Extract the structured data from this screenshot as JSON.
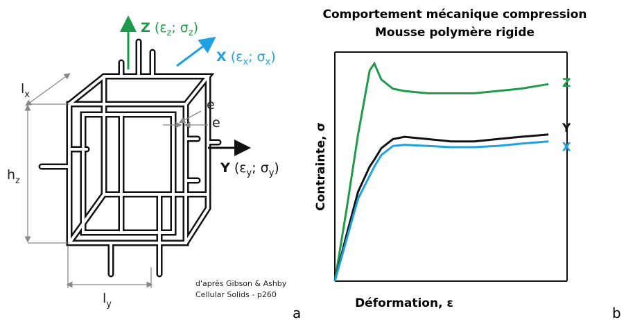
{
  "diagram": {
    "axes": [
      {
        "name": "Z",
        "parts": [
          "(ε",
          "z",
          "; σ",
          "z",
          ")"
        ],
        "color": "#1f9a4a"
      },
      {
        "name": "X",
        "parts": [
          "(ε",
          "x",
          "; σ",
          "x",
          ")"
        ],
        "color": "#1fa0e0"
      },
      {
        "name": "Y",
        "parts": [
          "(ε",
          "y",
          "; σ",
          "y",
          ")"
        ],
        "color": "#111111"
      }
    ],
    "dimensions": [
      {
        "letter": "l",
        "sub": "x"
      },
      {
        "letter": "h",
        "sub": "z"
      },
      {
        "letter": "l",
        "sub": "y"
      },
      {
        "letter": "e"
      },
      {
        "letter": "e"
      }
    ],
    "credit": [
      "d'après Gibson & Ashby",
      "Cellular Solids - p260"
    ]
  },
  "panel_labels": [
    "a",
    "b"
  ],
  "chart_data": {
    "type": "line",
    "title": [
      "Comportement mécanique compression",
      "Mousse polymère rigide"
    ],
    "x_label": "Déformation, ε",
    "y_label": "Contrainte, σ",
    "x": [
      0,
      5,
      10,
      15,
      17,
      20,
      25,
      30,
      40,
      50,
      60,
      70,
      80,
      92
    ],
    "xlim": [
      0,
      100
    ],
    "ylim": [
      0,
      100
    ],
    "series": [
      {
        "name": "Z",
        "color": "#1f9a4a",
        "values": [
          0,
          31,
          64,
          92,
          95,
          88,
          84,
          83,
          82,
          82,
          82,
          83,
          84,
          86
        ]
      },
      {
        "name": "Y",
        "color": "#111111",
        "values": [
          0,
          20,
          39,
          50,
          53,
          58,
          62,
          63,
          62,
          61,
          61,
          62,
          63,
          64
        ]
      },
      {
        "name": "X",
        "color": "#1fa0e0",
        "values": [
          0,
          18,
          36,
          46,
          50,
          55,
          59,
          59.5,
          59,
          58.5,
          58.5,
          59,
          60,
          61
        ]
      }
    ]
  }
}
